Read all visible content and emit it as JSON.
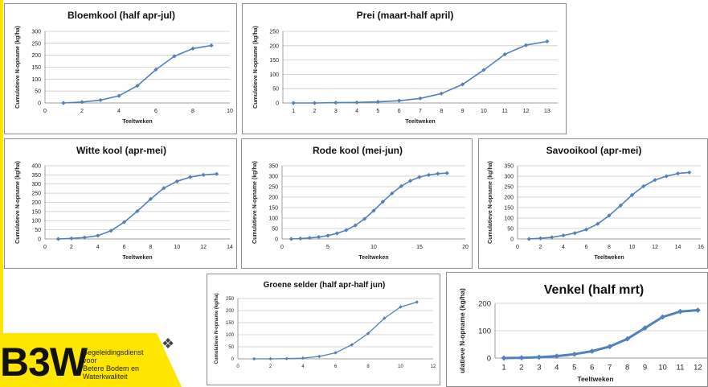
{
  "chart_data": [
    {
      "type": "line",
      "title": "Bloemkool (half apr-jul)",
      "xlabel": "Teeltweken",
      "ylabel": "Cumulatieve N-opname (kg/ha)",
      "xlim": [
        0,
        10
      ],
      "ylim": [
        0,
        300
      ],
      "xticks": [
        0,
        2,
        4,
        6,
        8,
        10
      ],
      "yticks": [
        0,
        50,
        100,
        150,
        200,
        250,
        300
      ],
      "x": [
        1,
        2,
        3,
        4,
        5,
        6,
        7,
        8,
        9
      ],
      "values": [
        0,
        4,
        12,
        30,
        72,
        140,
        196,
        228,
        241
      ],
      "color": "#4f81bd",
      "grid": true
    },
    {
      "type": "line",
      "title": "Prei (maart-half april)",
      "xlabel": "Teeltweken",
      "ylabel": "Cumulatieve N-opname (kg/ha)",
      "xlim": [
        0.5,
        13.5
      ],
      "ylim": [
        0,
        250
      ],
      "xticks": [
        1,
        2,
        3,
        4,
        5,
        6,
        7,
        8,
        9,
        10,
        11,
        12,
        13
      ],
      "yticks": [
        0,
        50,
        100,
        150,
        200,
        250
      ],
      "x": [
        1,
        2,
        3,
        4,
        5,
        6,
        7,
        8,
        9,
        10,
        11,
        12,
        13
      ],
      "values": [
        0,
        0,
        1,
        2,
        4,
        8,
        16,
        33,
        65,
        115,
        170,
        202,
        215
      ],
      "color": "#4f81bd",
      "grid": true
    },
    {
      "type": "line",
      "title": "Witte kool (apr-mei)",
      "xlabel": "Teeltweken",
      "ylabel": "Cumulatieve N-opname (kg/ha)",
      "xlim": [
        0,
        14
      ],
      "ylim": [
        0,
        400
      ],
      "xticks": [
        0,
        2,
        4,
        6,
        8,
        10,
        12,
        14
      ],
      "yticks": [
        0,
        50,
        100,
        150,
        200,
        250,
        300,
        350,
        400
      ],
      "x": [
        1,
        2,
        3,
        4,
        5,
        6,
        7,
        8,
        9,
        10,
        11,
        12,
        13
      ],
      "values": [
        0,
        3,
        8,
        18,
        45,
        92,
        152,
        218,
        278,
        315,
        338,
        350,
        355
      ],
      "color": "#4f81bd",
      "grid": true
    },
    {
      "type": "line",
      "title": "Rode kool (mei-jun)",
      "xlabel": "Teeltweken",
      "ylabel": "Cumulatieve N-opname (kg/ha)",
      "xlim": [
        0,
        20
      ],
      "ylim": [
        0,
        350
      ],
      "xticks": [
        0,
        5,
        10,
        15,
        20
      ],
      "yticks": [
        0,
        50,
        100,
        150,
        200,
        250,
        300,
        350
      ],
      "x": [
        1,
        2,
        3,
        4,
        5,
        6,
        7,
        8,
        9,
        10,
        11,
        12,
        13,
        14,
        15,
        16,
        17,
        18
      ],
      "values": [
        0,
        2,
        5,
        9,
        16,
        27,
        42,
        65,
        96,
        135,
        178,
        218,
        252,
        278,
        296,
        306,
        312,
        315
      ],
      "color": "#4f81bd",
      "grid": true
    },
    {
      "type": "line",
      "title": "Savooikool (apr-mei)",
      "xlabel": "Teeltweken",
      "ylabel": "Cumulatieve N-opname (kg/ha)",
      "xlim": [
        0,
        16
      ],
      "ylim": [
        0,
        350
      ],
      "xticks": [
        0,
        2,
        4,
        6,
        8,
        10,
        12,
        14,
        16
      ],
      "yticks": [
        0,
        50,
        100,
        150,
        200,
        250,
        300,
        350
      ],
      "x": [
        1,
        2,
        3,
        4,
        5,
        6,
        7,
        8,
        9,
        10,
        11,
        12,
        13,
        14,
        15
      ],
      "values": [
        0,
        3,
        8,
        17,
        28,
        45,
        72,
        112,
        160,
        210,
        252,
        282,
        300,
        313,
        318
      ],
      "color": "#4f81bd",
      "grid": true
    },
    {
      "type": "line",
      "title": "Groene selder (half apr-half jun)",
      "xlabel": "",
      "ylabel": "Cumulatieve N-opname (kg/ha)",
      "xlim": [
        0,
        12
      ],
      "ylim": [
        0,
        250
      ],
      "xticks": [
        0,
        2,
        4,
        6,
        8,
        10,
        12
      ],
      "yticks": [
        0,
        50,
        100,
        150,
        200,
        250
      ],
      "x": [
        1,
        2,
        3,
        4,
        5,
        6,
        7,
        8,
        9,
        10,
        11
      ],
      "values": [
        0,
        0,
        1,
        3,
        10,
        25,
        58,
        105,
        168,
        215,
        235
      ],
      "color": "#4f81bd",
      "grid": true
    },
    {
      "type": "line",
      "title": "Venkel (half mrt)",
      "xlabel": "Teeltweken",
      "ylabel": "Cumulatieve N-opname (kg/ha)",
      "ylabel_visible_part": "ulatieve N-opname (kg/ha)",
      "xlim": [
        0.5,
        12.8
      ],
      "ylim": [
        0,
        200
      ],
      "xticks": [
        1,
        2,
        3,
        4,
        5,
        6,
        7,
        8,
        9,
        10,
        11,
        12
      ],
      "xtick_labels": [
        "1",
        "2",
        "3",
        "4",
        "5",
        "6",
        "7",
        "8",
        "9",
        "10",
        "11",
        "12"
      ],
      "yticks": [
        0,
        100,
        200
      ],
      "x": [
        1,
        2,
        3,
        4,
        5,
        6,
        7,
        8,
        9,
        10,
        11,
        12
      ],
      "values": [
        0,
        1,
        3,
        7,
        14,
        25,
        42,
        70,
        110,
        150,
        170,
        175
      ],
      "color": "#4f81bd",
      "grid": true
    }
  ],
  "logo": {
    "wordmark": "B3W",
    "line1": "Begeleidingsdienst",
    "line2": "voor",
    "line3": "Betere Bodem en",
    "line4": "Waterkwaliteit",
    "background_color": "#ffe600",
    "emblem_icon": "lion-emblem-icon"
  }
}
